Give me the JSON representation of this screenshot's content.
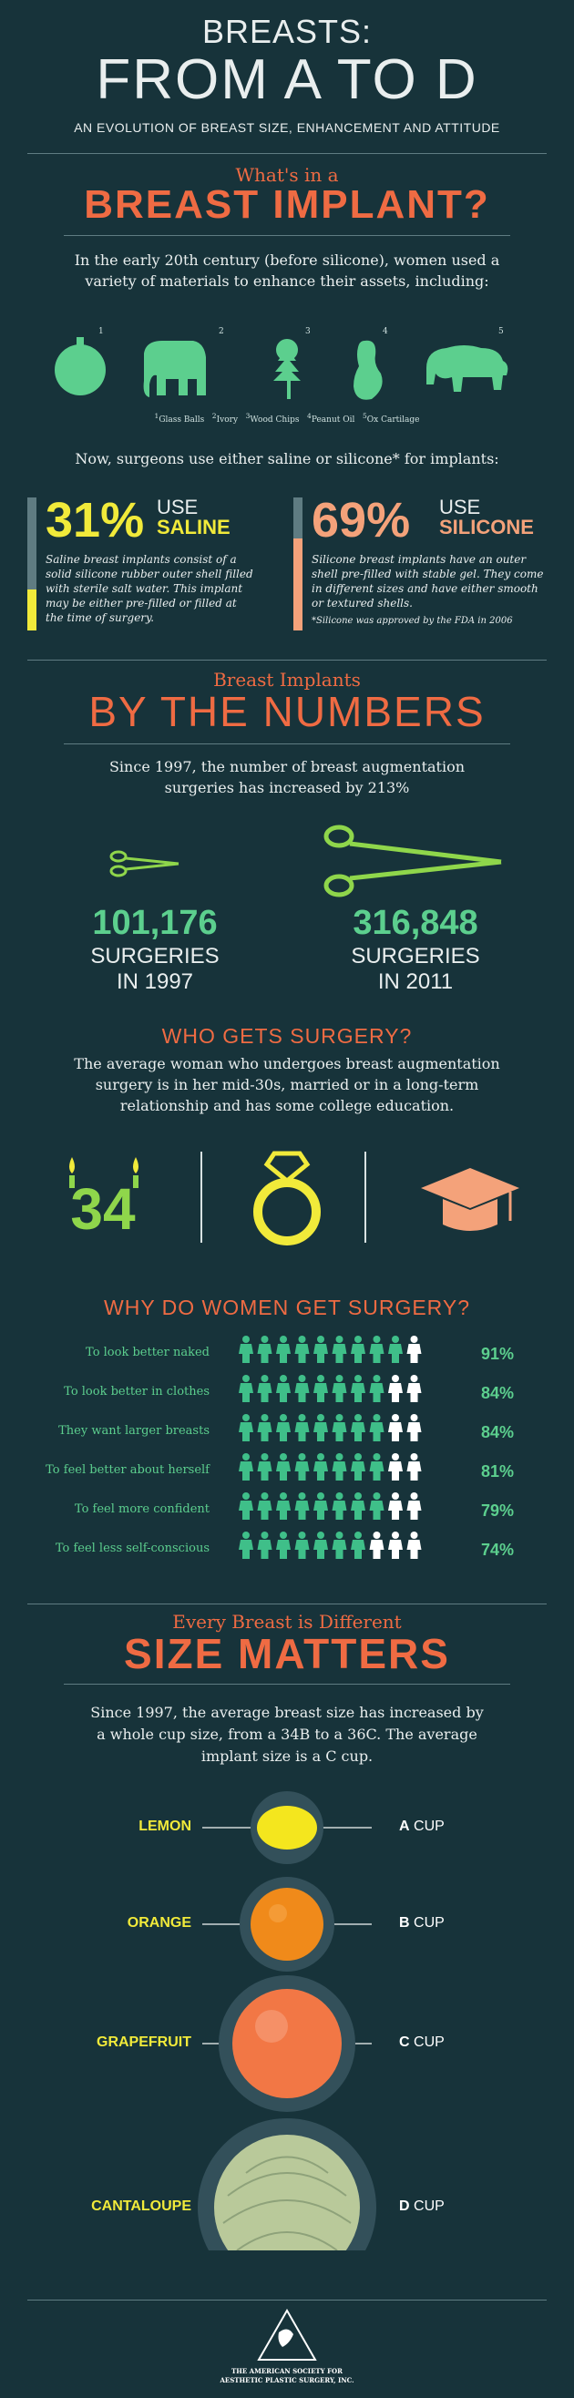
{
  "header": {
    "line1": "BREASTS:",
    "line2": "FROM A TO D",
    "subtitle": "AN EVOLUTION OF BREAST SIZE, ENHANCEMENT AND ATTITUDE"
  },
  "implant": {
    "kicker": "What's in a",
    "title": "BREAST IMPLANT?",
    "intro": "In the early 20th century (before silicone), women used a variety of materials to enhance their assets, including:",
    "materials": [
      {
        "num": "1",
        "icon": "ball-icon",
        "caption": "Glass Balls"
      },
      {
        "num": "2",
        "icon": "elephant-icon",
        "caption": "Ivory"
      },
      {
        "num": "3",
        "icon": "tree-icon",
        "caption": "Wood Chips"
      },
      {
        "num": "4",
        "icon": "peanut-icon",
        "caption": "Peanut Oil"
      },
      {
        "num": "5",
        "icon": "bison-icon",
        "caption": "Ox Cartilage"
      }
    ],
    "now_text": "Now, surgeons use either saline or silicone* for implants:",
    "saline": {
      "pct": "31%",
      "use": "USE",
      "label": "SALINE",
      "fill": 0.31,
      "color": "#f1ea3a",
      "text": "Saline breast implants consist of a solid silicone rubber outer shell filled with sterile salt water. This implant may be either pre-filled or filled at the time of surgery."
    },
    "silicone": {
      "pct": "69%",
      "use": "USE",
      "label": "SILICONE",
      "fill": 0.69,
      "color": "#f4a27a",
      "text": "Silicone breast implants have an outer shell pre-filled with stable gel. They come in different sizes and have either smooth or textured shells.",
      "note": "*Silicone was approved by the FDA in 2006"
    }
  },
  "numbers": {
    "kicker": "Breast Implants",
    "title": "BY THE NUMBERS",
    "intro": "Since 1997, the number of breast augmentation surgeries has increased by 213%",
    "y1997": {
      "value": "101,176",
      "label1": "SURGERIES",
      "label2": "IN 1997"
    },
    "y2011": {
      "value": "316,848",
      "label1": "SURGERIES",
      "label2": "IN 2011"
    }
  },
  "who": {
    "title": "WHO GETS SURGERY?",
    "text": "The average woman who undergoes breast augmentation surgery is in her mid-30s, married or in a long-term relationship and has some college education.",
    "age": "34"
  },
  "why": {
    "title": "WHY DO WOMEN GET SURGERY?",
    "reasons": [
      {
        "label": "To look better naked",
        "pct": "91%",
        "value": 91
      },
      {
        "label": "To look better in clothes",
        "pct": "84%",
        "value": 84
      },
      {
        "label": "They want larger breasts",
        "pct": "84%",
        "value": 84
      },
      {
        "label": "To feel better about herself",
        "pct": "81%",
        "value": 81
      },
      {
        "label": "To feel more confident",
        "pct": "79%",
        "value": 79
      },
      {
        "label": "To feel less self-conscious",
        "pct": "74%",
        "value": 74
      }
    ]
  },
  "size": {
    "kicker": "Every Breast is Different",
    "title": "SIZE MATTERS",
    "intro": "Since 1997, the average breast size has increased by a whole cup size, from a 34B to a 36C. The average implant size is a C cup.",
    "fruits": [
      {
        "fruit": "LEMON",
        "cup_letter": "A",
        "cup_word": "CUP"
      },
      {
        "fruit": "ORANGE",
        "cup_letter": "B",
        "cup_word": "CUP"
      },
      {
        "fruit": "GRAPEFRUIT",
        "cup_letter": "C",
        "cup_word": "CUP"
      },
      {
        "fruit": "CANTALOUPE",
        "cup_letter": "D",
        "cup_word": "CUP"
      }
    ]
  },
  "footer": {
    "org_line1": "THE AMERICAN SOCIETY FOR",
    "org_line2": "AESTHETIC PLASTIC SURGERY, INC."
  }
}
